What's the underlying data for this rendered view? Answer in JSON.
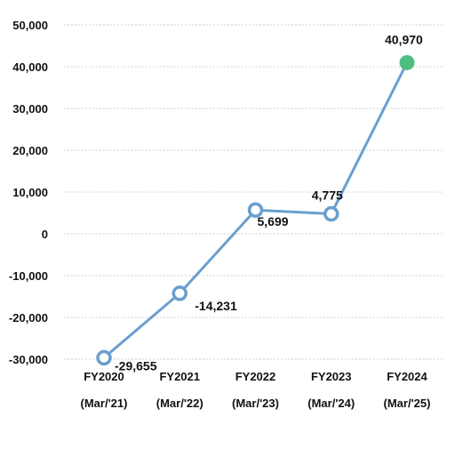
{
  "chart_data": {
    "type": "line",
    "categories": [
      [
        "FY2020",
        "(Mar/'21)"
      ],
      [
        "FY2021",
        "(Mar/'22)"
      ],
      [
        "FY2022",
        "(Mar/'23)"
      ],
      [
        "FY2023",
        "(Mar/'24)"
      ],
      [
        "FY2024",
        "(Mar/'25)"
      ]
    ],
    "series": [
      {
        "values": [
          -29655,
          -14231,
          5699,
          4775,
          40970
        ],
        "value_labels": [
          "-29,655",
          "-14,231",
          "5,699",
          "4,775",
          "40,970"
        ]
      }
    ],
    "ylim": [
      -30000,
      50000
    ],
    "yticks": [
      -30000,
      -20000,
      -10000,
      0,
      10000,
      20000,
      30000,
      40000,
      50000
    ],
    "ytick_labels": [
      "-30,000",
      "-20,000",
      "-10,000",
      "0",
      "10,000",
      "20,000",
      "30,000",
      "40,000",
      "50,000"
    ],
    "grid": true,
    "legend": "none",
    "colors": {
      "line": "#6a9fcf",
      "marker_fill": "#ffffff",
      "highlight": "#4dbf80",
      "grid": "#d0d0d0",
      "text": "#111111"
    }
  }
}
